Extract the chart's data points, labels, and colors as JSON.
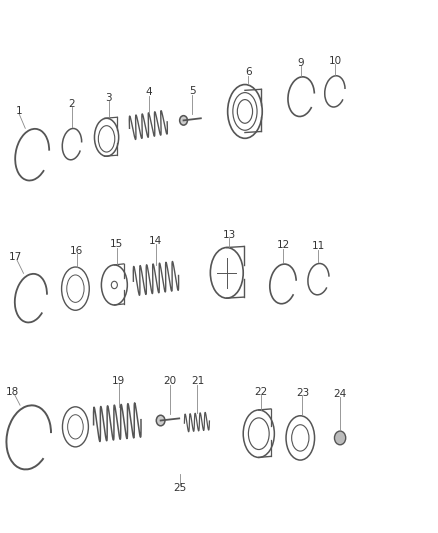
{
  "bg_color": "#ffffff",
  "line_color": "#555555",
  "label_color": "#333333",
  "font_size": 7.5,
  "lw": 1.1
}
